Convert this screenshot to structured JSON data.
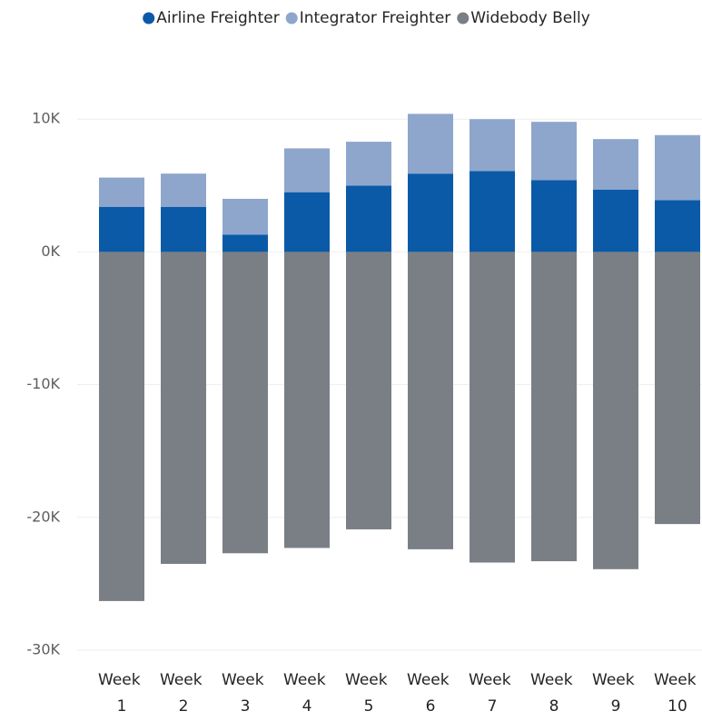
{
  "chart_data": {
    "type": "stacked_bar",
    "categories": [
      "Week 1",
      "Week 2",
      "Week 3",
      "Week 4",
      "Week 5",
      "Week 6",
      "Week 7",
      "Week 8",
      "Week 9",
      "Week 10"
    ],
    "series": [
      {
        "name": "Airline Freighter",
        "color": "#0a5aa8",
        "values": [
          3400,
          3400,
          1300,
          4500,
          5000,
          5900,
          6100,
          5400,
          4700,
          3900
        ]
      },
      {
        "name": "Integrator Freighter",
        "color": "#8ea6cc",
        "values": [
          2200,
          2500,
          2700,
          3300,
          3300,
          4500,
          3900,
          4400,
          3800,
          4900
        ]
      },
      {
        "name": "Widebody Belly",
        "color": "#7a7f86",
        "values": [
          -26300,
          -23500,
          -22700,
          -22300,
          -20900,
          -22400,
          -23400,
          -23300,
          -23900,
          -20500
        ]
      }
    ],
    "ylim": [
      -30000,
      12000
    ],
    "yticks": [
      {
        "value": 10000,
        "label": "10K"
      },
      {
        "value": 0,
        "label": "0K"
      },
      {
        "value": -10000,
        "label": "-10K"
      },
      {
        "value": -20000,
        "label": "-20K"
      },
      {
        "value": -30000,
        "label": "-30K"
      }
    ],
    "grid": true,
    "legend": "top"
  }
}
